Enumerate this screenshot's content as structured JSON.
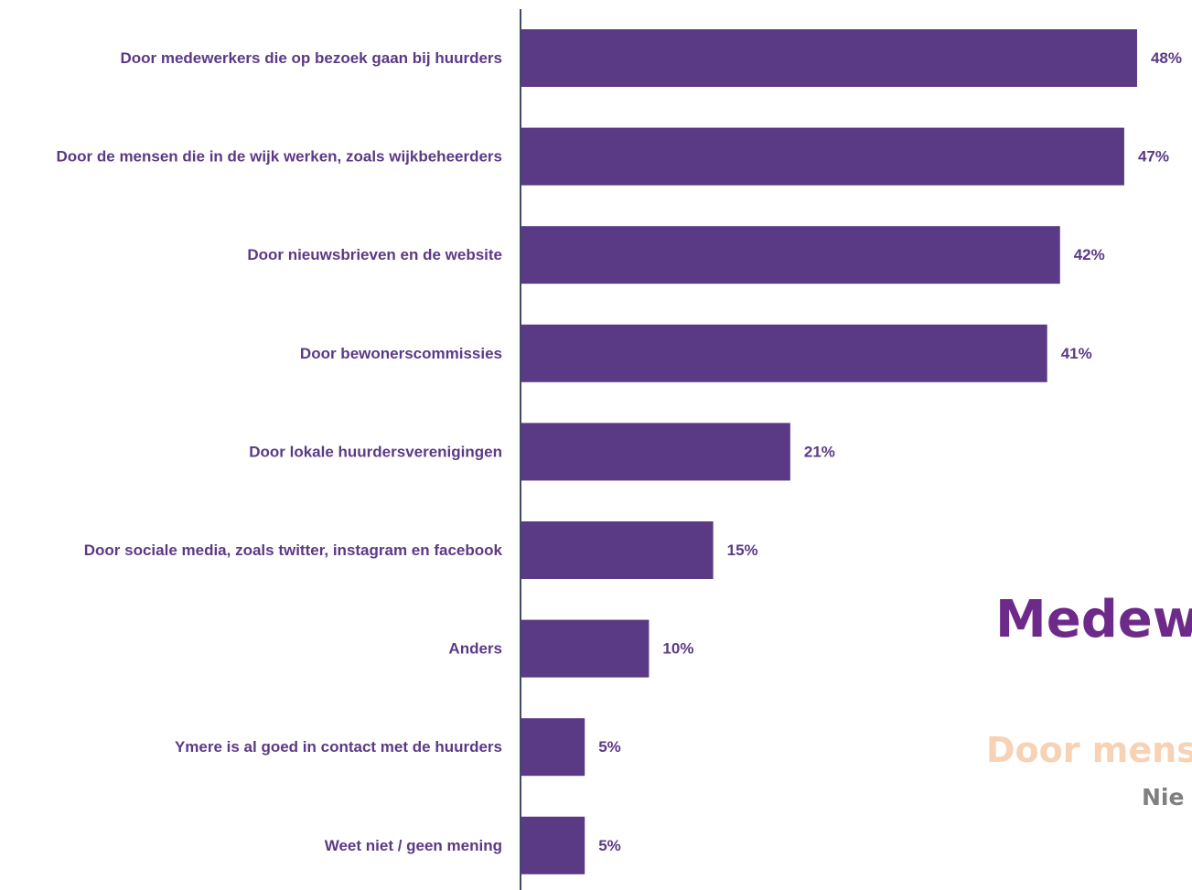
{
  "colors": {
    "bar": "#5b3a85",
    "label": "#5b3a85",
    "axis": "#3d4a6b",
    "overlay_title": "#6d2a8a",
    "overlay_sub": "#f7d2b4",
    "overlay_small": "#7f7f7f"
  },
  "chart_data": {
    "type": "bar",
    "orientation": "horizontal",
    "unit": "%",
    "categories": [
      "Door medewerkers die op bezoek gaan bij huurders",
      "Door de mensen die in de wijk werken, zoals wijkbeheerders",
      "Door nieuwsbrieven en de website",
      "Door bewonerscommissies",
      "Door lokale huurdersverenigingen",
      "Door sociale media, zoals twitter, instagram en facebook",
      "Anders",
      "Ymere is al goed in contact met de huurders",
      "Weet niet / geen mening"
    ],
    "values": [
      48,
      47,
      42,
      41,
      21,
      15,
      10,
      5,
      5
    ],
    "value_labels": [
      "48%",
      "47%",
      "42%",
      "41%",
      "21%",
      "15%",
      "10%",
      "5%",
      "5%"
    ],
    "xlim": [
      0,
      48.5
    ],
    "grid": false,
    "legend": "none"
  },
  "overlay": {
    "title": "Medewe",
    "subtitle": "Door mens",
    "small": "Nie"
  }
}
